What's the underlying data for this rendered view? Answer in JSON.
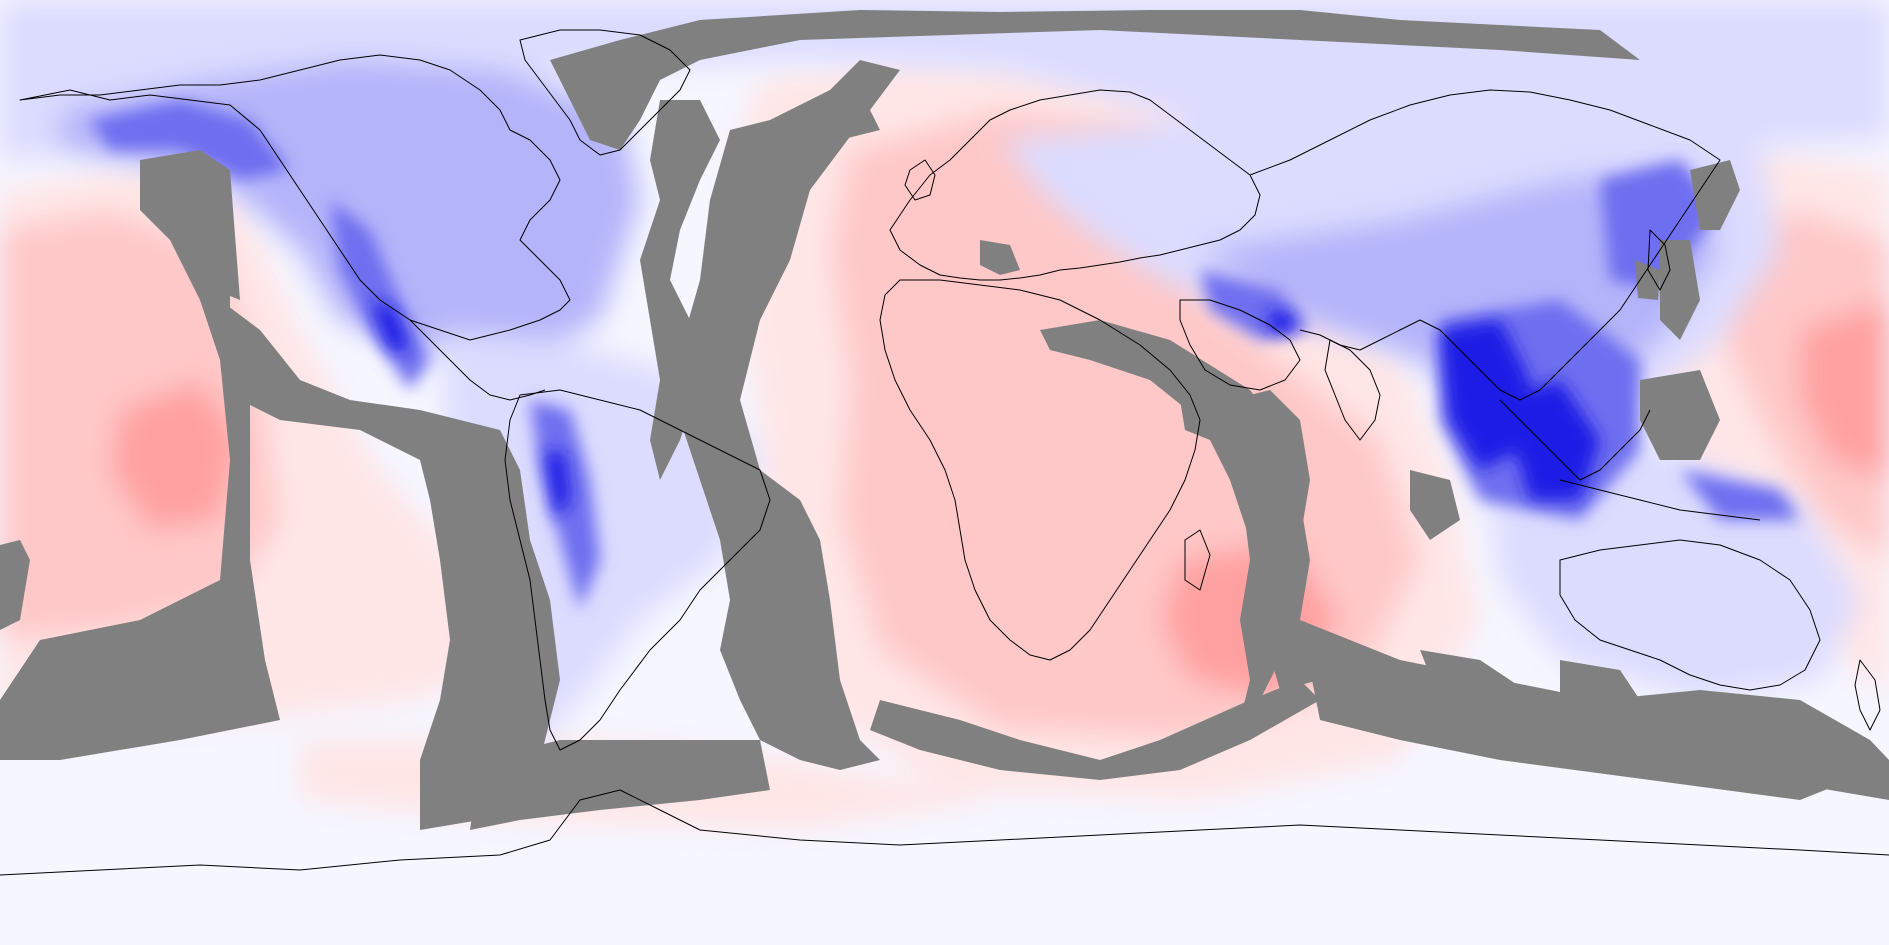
{
  "map": {
    "type": "global-anomaly-field",
    "projection": "equirectangular",
    "extent": {
      "lon": [
        -180,
        180
      ],
      "lat": [
        -90,
        90
      ]
    },
    "diverging_colormap": {
      "strong_positive": "#ff9a9a",
      "positive": "#ffc2c2",
      "weak_positive": "#ffe6e6",
      "near_zero": "#f5f6ff",
      "weak_negative": "#dcdcff",
      "negative": "#b4b4fa",
      "strong_negative": "#6e6ef0",
      "extreme_negative": "#1e1ee6"
    },
    "masked_region_color": "#808080",
    "coastline_color": "#000000",
    "legend": null,
    "title": null
  }
}
